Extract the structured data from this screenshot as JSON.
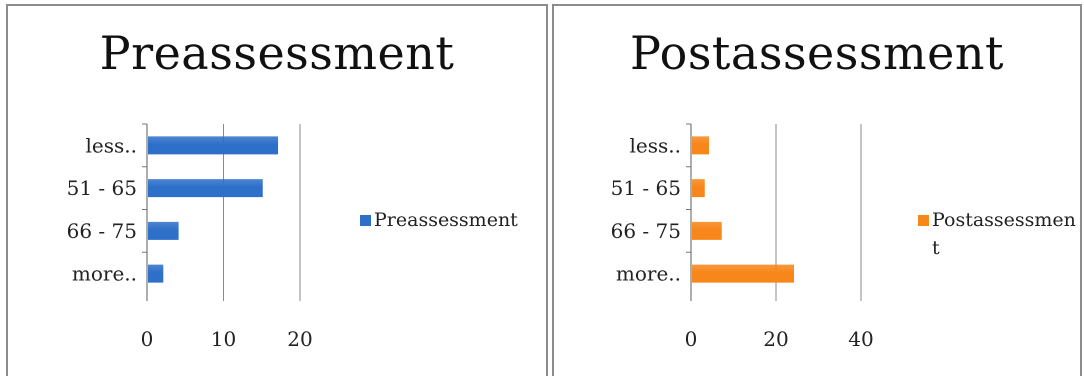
{
  "chart_data": [
    {
      "type": "bar",
      "orientation": "horizontal",
      "title": "Preassessment",
      "categories": [
        "less..",
        "51 - 65",
        "66 - 75",
        "more.."
      ],
      "series": [
        {
          "name": "Preassessment",
          "values": [
            17,
            15,
            4,
            2
          ]
        }
      ],
      "xlim": [
        0,
        20
      ],
      "xticks": [
        "0",
        "10",
        "20"
      ],
      "color": "#2e6fc9",
      "grid": true,
      "legend": "right"
    },
    {
      "type": "bar",
      "orientation": "horizontal",
      "title": "Postassessment",
      "categories": [
        "less..",
        "51 - 65",
        "66 - 75",
        "more.."
      ],
      "series": [
        {
          "name": "Postassessment",
          "values": [
            4,
            3,
            7,
            24
          ]
        }
      ],
      "xlim": [
        0,
        40
      ],
      "xticks": [
        "0",
        "20",
        "40"
      ],
      "color": "#f7861b",
      "grid": true,
      "legend": "right"
    }
  ]
}
